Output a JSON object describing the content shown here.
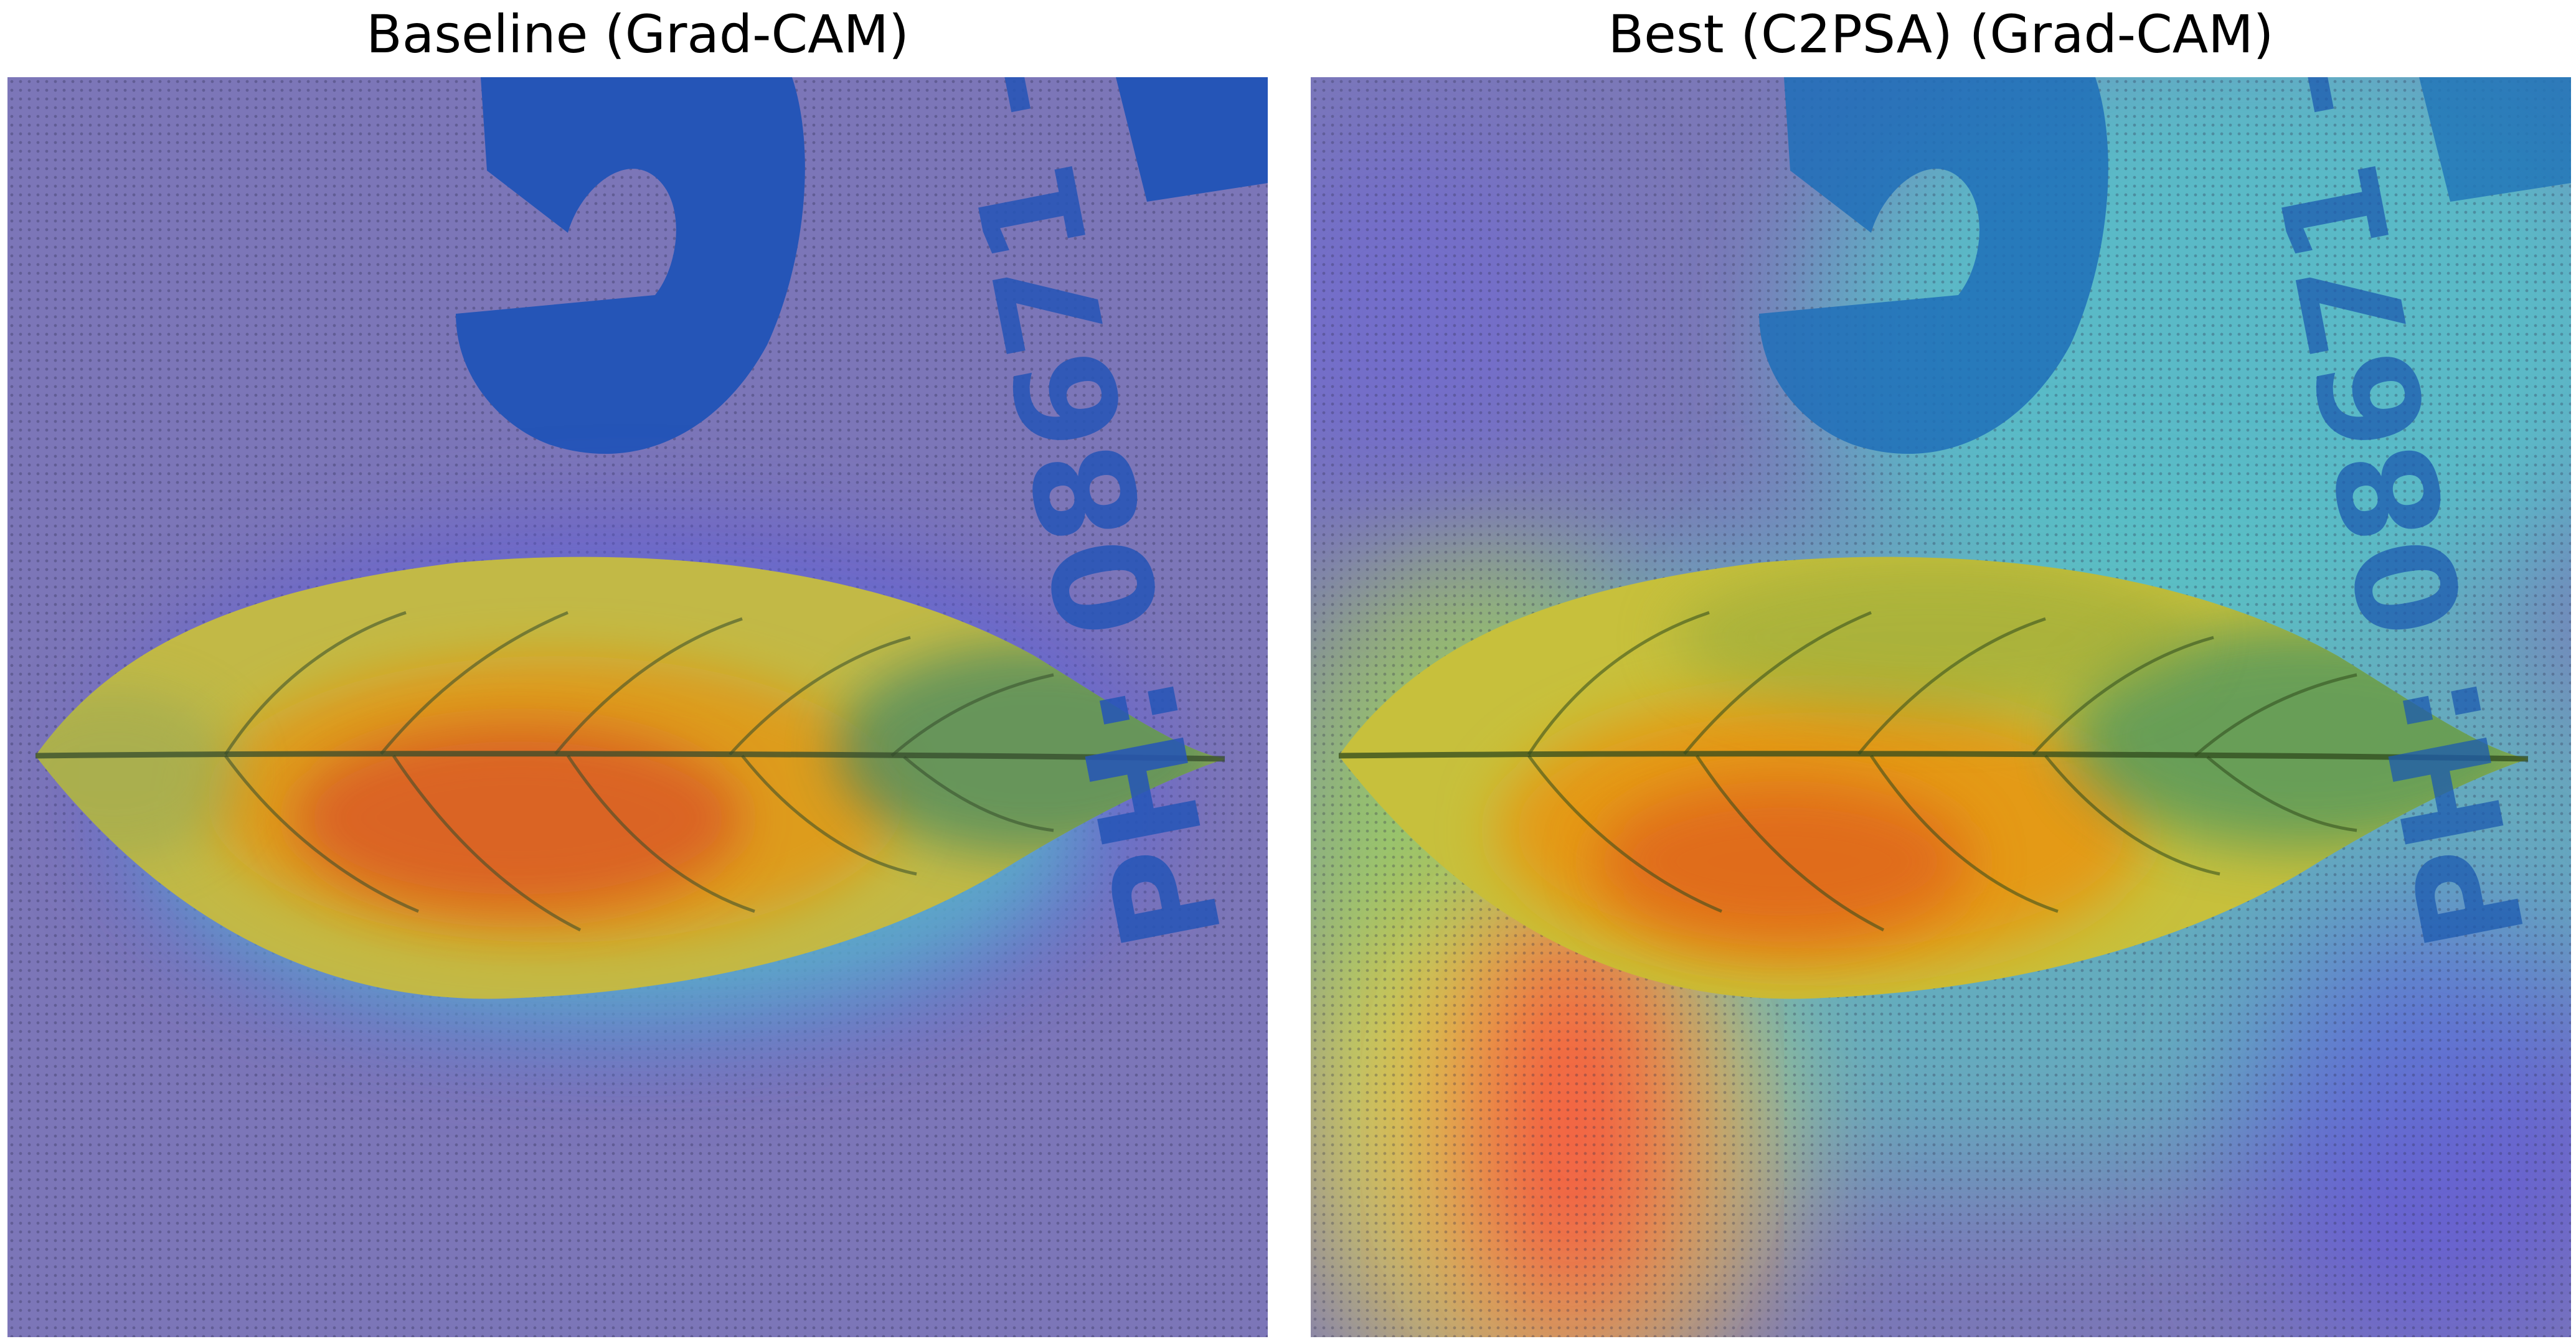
{
  "panels": [
    {
      "title": "Baseline (Grad-CAM)"
    },
    {
      "title": "Best (C2PSA) (Grad-CAM)"
    }
  ],
  "colors": {
    "background": "#7c78b4",
    "print_ink": "#1a4fb8",
    "leaf_vein": "#2f4a1c",
    "heat_low": "#5b53e0",
    "heat_mid": "#57d6c8",
    "heat_high": "#ff3030",
    "heat_peak": "#e8631a"
  },
  "icons": {
    "left_image": "gradcam-leaf-baseline",
    "right_image": "gradcam-leaf-c2psa"
  }
}
